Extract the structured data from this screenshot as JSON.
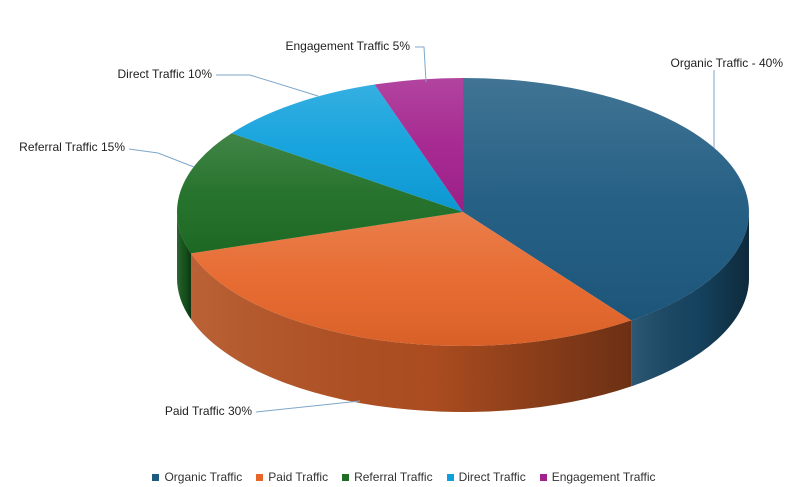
{
  "chart_data": {
    "type": "pie",
    "style": "3d",
    "title": "",
    "categories": [
      "Organic Traffic",
      "Paid Traffic",
      "Referral Traffic",
      "Direct Traffic",
      "Engagement Traffic"
    ],
    "values": [
      40,
      30,
      15,
      10,
      5
    ],
    "colors": [
      "#1d5a80",
      "#e6662a",
      "#1e6e25",
      "#0ea0dc",
      "#a3218d"
    ],
    "data_labels": [
      "Organic Traffic - 40%",
      "Paid Traffic 30%",
      "Referral Traffic 15%",
      "Direct Traffic 10%",
      "Engagement Traffic 5%"
    ],
    "legend": {
      "position": "bottom",
      "items": [
        {
          "name": "Organic Traffic",
          "color": "#1d5a80"
        },
        {
          "name": "Paid Traffic",
          "color": "#e6662a"
        },
        {
          "name": "Referral Traffic",
          "color": "#1e6e25"
        },
        {
          "name": "Direct Traffic",
          "color": "#0ea0dc"
        },
        {
          "name": "Engagement Traffic",
          "color": "#a3218d"
        }
      ]
    }
  }
}
